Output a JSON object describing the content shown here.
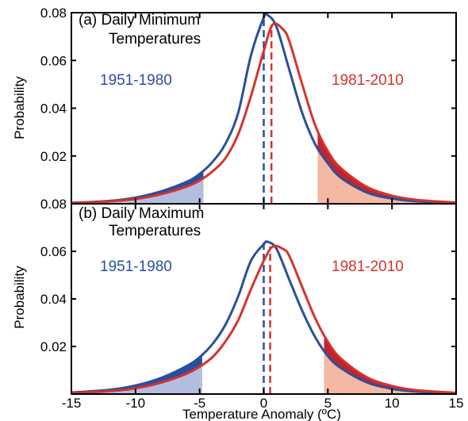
{
  "colors": {
    "blue": "#2b4f9e",
    "red": "#d7322c",
    "blue_fill": "#b3bde0",
    "red_fill": "#f5b8a2",
    "blue_dark_fill": "#2b4f9e",
    "red_dark_fill": "#c1252b"
  },
  "chart_data": [
    {
      "panel": "a",
      "type": "line",
      "title_line1": "(a) Daily Minimum",
      "title_line2": "Temperatures",
      "ylabel": "Probability",
      "xlim": [
        -15,
        15
      ],
      "ylim": [
        0,
        0.08
      ],
      "yticks": [
        0.02,
        0.04,
        0.06,
        0.08
      ],
      "ytick_labels": [
        "0.02",
        "0.04",
        "0.06",
        "0.08"
      ],
      "xticks": [
        -15,
        -10,
        -5,
        0,
        5,
        10,
        15
      ],
      "grid": false,
      "series": [
        {
          "name": "1951-1980",
          "color": "blue",
          "mean": 0.0,
          "peak": 0.079,
          "x": [
            -15,
            -12,
            -10,
            -8,
            -6,
            -5,
            -4,
            -3,
            -2,
            -1,
            0,
            0.3,
            1,
            2,
            3,
            4,
            5,
            6,
            8,
            10,
            12,
            15
          ],
          "y": [
            0.0004,
            0.0012,
            0.0026,
            0.0052,
            0.0092,
            0.0125,
            0.0175,
            0.025,
            0.038,
            0.062,
            0.078,
            0.079,
            0.074,
            0.056,
            0.038,
            0.025,
            0.017,
            0.011,
            0.0048,
            0.0022,
            0.001,
            0.0003
          ],
          "shade_x": [
            -15,
            -4.7
          ],
          "shade_label_line": "left tail"
        },
        {
          "name": "1981-2010",
          "color": "red",
          "mean": 0.6,
          "peak": 0.075,
          "x": [
            -15,
            -12,
            -10,
            -8,
            -6,
            -5,
            -4,
            -3,
            -2,
            -1,
            0,
            0.7,
            1.5,
            2,
            3,
            4,
            5,
            6,
            8,
            10,
            12,
            15
          ],
          "y": [
            0.0003,
            0.001,
            0.002,
            0.004,
            0.0072,
            0.0097,
            0.0135,
            0.019,
            0.029,
            0.045,
            0.064,
            0.075,
            0.073,
            0.068,
            0.05,
            0.033,
            0.022,
            0.015,
            0.0072,
            0.0034,
            0.0016,
            0.0005
          ],
          "shade_x": [
            4.2,
            15
          ]
        }
      ]
    },
    {
      "panel": "b",
      "type": "line",
      "title_line1": "(b) Daily Maximum",
      "title_line2": "Temperatures",
      "ylabel": "Probability",
      "xlabel": "Temperature Anomaly (ºC)",
      "xlim": [
        -15,
        15
      ],
      "ylim": [
        0,
        0.08
      ],
      "yticks": [
        0.02,
        0.04,
        0.06
      ],
      "ytick_labels": [
        "0.02",
        "0.04",
        "0.06"
      ],
      "top_tick_label": "0.08",
      "xticks": [
        -15,
        -10,
        -5,
        0,
        5,
        10,
        15
      ],
      "xtick_labels": [
        "-15",
        "-10",
        "-5",
        "0",
        "5",
        "10",
        "15"
      ],
      "grid": false,
      "series": [
        {
          "name": "1951-1980",
          "color": "blue",
          "mean": 0.0,
          "peak": 0.064,
          "x": [
            -15,
            -12,
            -10,
            -8,
            -6,
            -5,
            -4,
            -3,
            -2,
            -1,
            0,
            0.3,
            1,
            2,
            3,
            4,
            5,
            6,
            8,
            10,
            12,
            15
          ],
          "y": [
            0.0006,
            0.0018,
            0.0036,
            0.0068,
            0.0118,
            0.0155,
            0.021,
            0.029,
            0.041,
            0.056,
            0.063,
            0.064,
            0.061,
            0.048,
            0.035,
            0.024,
            0.016,
            0.011,
            0.005,
            0.0022,
            0.001,
            0.0003
          ],
          "shade_x": [
            -15,
            -4.8
          ]
        },
        {
          "name": "1981-2010",
          "color": "red",
          "mean": 0.5,
          "peak": 0.062,
          "x": [
            -15,
            -12,
            -10,
            -8,
            -6,
            -5,
            -4,
            -3,
            -2,
            -1,
            0,
            0.7,
            1.5,
            2,
            3,
            4,
            5,
            6,
            8,
            10,
            12,
            15
          ],
          "y": [
            0.0004,
            0.0012,
            0.0024,
            0.0048,
            0.0086,
            0.0115,
            0.0155,
            0.022,
            0.031,
            0.044,
            0.056,
            0.062,
            0.061,
            0.058,
            0.045,
            0.032,
            0.022,
            0.015,
            0.0072,
            0.0034,
            0.0016,
            0.0005
          ],
          "shade_x": [
            4.7,
            15
          ]
        }
      ]
    }
  ]
}
